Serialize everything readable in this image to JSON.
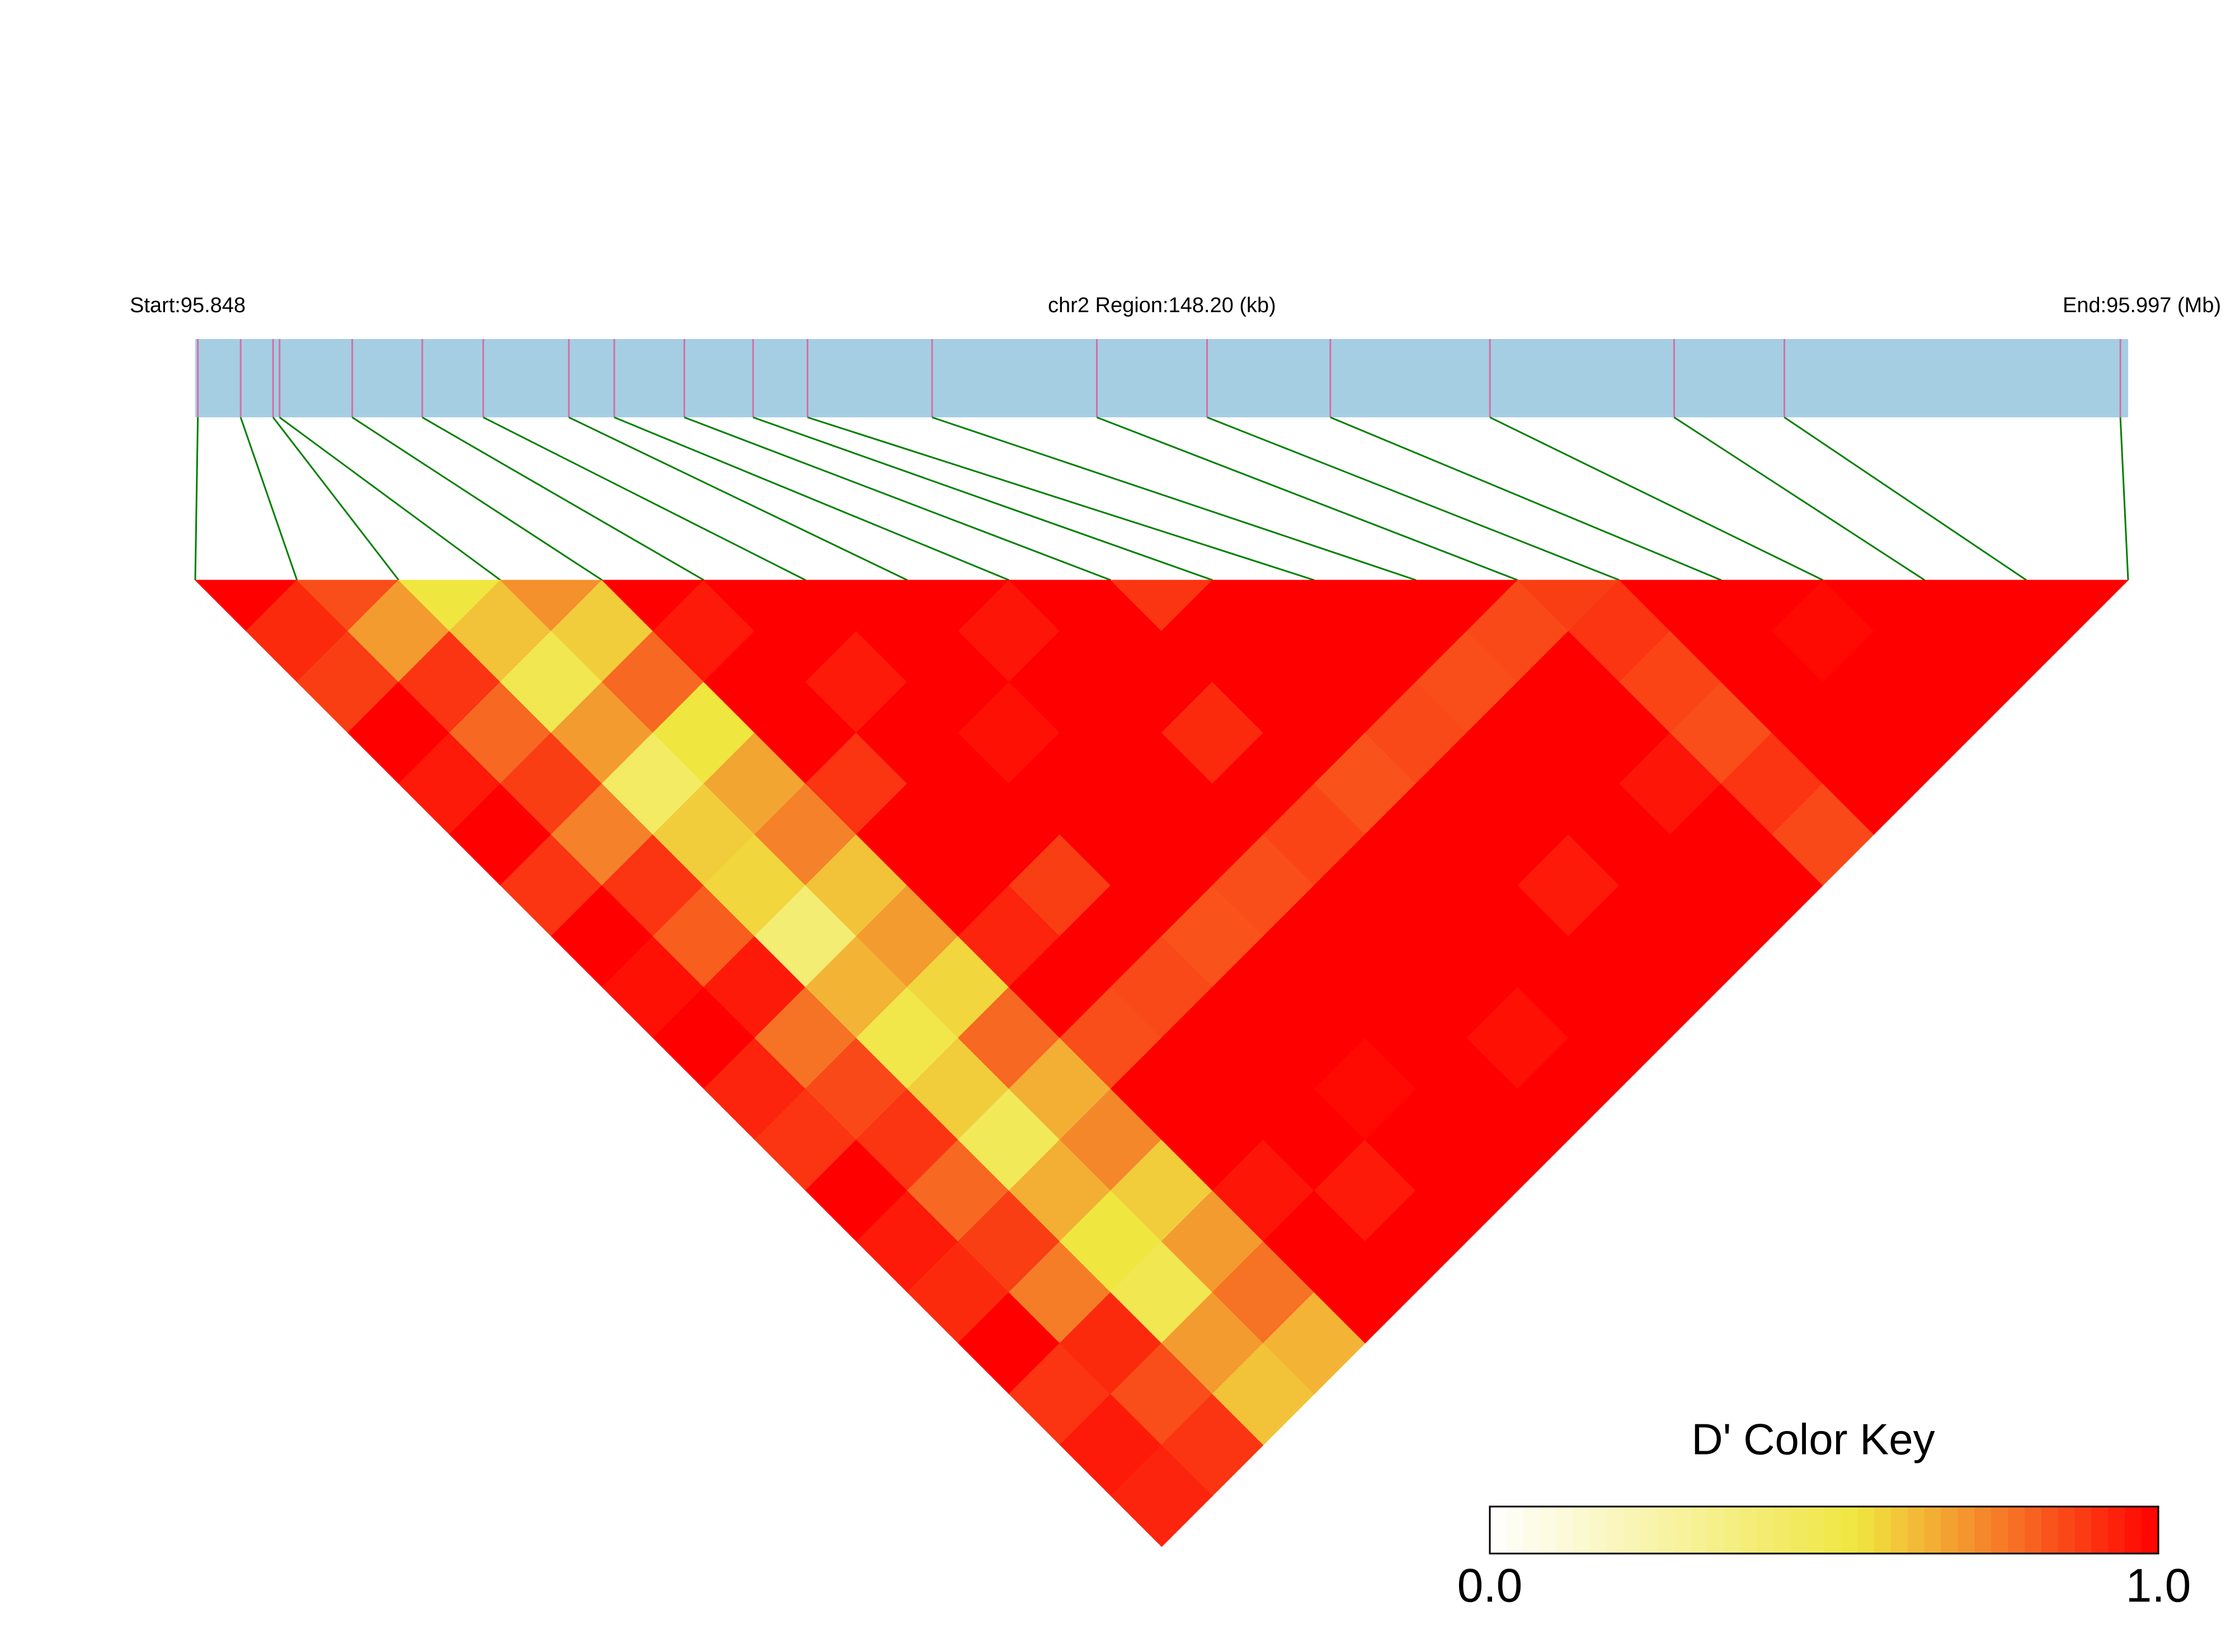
{
  "chart_data": {
    "type": "ld-heatmap",
    "start_label": "Start:95.848",
    "region_label": "chr2 Region:148.20 (kb)",
    "end_label": "End:95.997 (Mb)",
    "xlim": [
      95.848,
      95.997
    ],
    "x": [
      95.8482,
      95.8515,
      95.854,
      95.8545,
      95.8601,
      95.8655,
      95.8702,
      95.8768,
      95.8803,
      95.8857,
      95.891,
      95.8952,
      95.9048,
      95.9175,
      95.926,
      95.9355,
      95.9478,
      95.962,
      95.9705,
      95.9964
    ],
    "dprime": [
      [
        1,
        0.92,
        0.88,
        1,
        0.95,
        1,
        0.9,
        1,
        0.97,
        1,
        0.93,
        0.9,
        1,
        0.95,
        0.92,
        1,
        0.9,
        0.95,
        0.93
      ],
      [
        0.85,
        0.7,
        0.9,
        0.8,
        0.88,
        0.75,
        0.9,
        0.82,
        0.95,
        0.78,
        0.86,
        0.9,
        0.8,
        0.88,
        0.76,
        0.92,
        0.85,
        0.9
      ],
      [
        0.55,
        0.62,
        0.5,
        0.7,
        0.45,
        0.6,
        0.58,
        0.4,
        0.65,
        0.52,
        0.6,
        0.48,
        0.66,
        0.55,
        0.5,
        0.7,
        0.62
      ],
      [
        0.72,
        0.6,
        0.8,
        0.55,
        0.68,
        0.75,
        0.62,
        0.7,
        0.58,
        0.8,
        0.66,
        0.74,
        0.6,
        0.7,
        0.78,
        0.65
      ],
      [
        1,
        0.95,
        1,
        1,
        0.9,
        1,
        1,
        0.93,
        1,
        0.85,
        1,
        1,
        0.96,
        1,
        1
      ],
      [
        1,
        1,
        0.95,
        1,
        1,
        1,
        0.88,
        1,
        0.86,
        1,
        1,
        1,
        0.95,
        1
      ],
      [
        1,
        1,
        1,
        0.97,
        1,
        1,
        1,
        0.84,
        1,
        1,
        0.98,
        1,
        1
      ],
      [
        1,
        0.96,
        1,
        1,
        1,
        1,
        0.85,
        1,
        1,
        1,
        1,
        1
      ],
      [
        1,
        1,
        1,
        0.92,
        1,
        0.87,
        1,
        1,
        1,
        0.97,
        1
      ],
      [
        0.9,
        1,
        1,
        1,
        0.84,
        1,
        1,
        1,
        1,
        1
      ],
      [
        1,
        1,
        1,
        0.86,
        1,
        1,
        0.95,
        1,
        1
      ],
      [
        1,
        1,
        0.85,
        1,
        1,
        1,
        1,
        1
      ],
      [
        1,
        0.86,
        1,
        1,
        0.96,
        1,
        1
      ],
      [
        0.88,
        0.9,
        0.87,
        0.85,
        0.9,
        0.86
      ],
      [
        1,
        1,
        1,
        1,
        1
      ],
      [
        1,
        0.98,
        1,
        1
      ],
      [
        1,
        1,
        1
      ],
      [
        1,
        1
      ],
      [
        1
      ]
    ],
    "bar_color": "#a6cee3",
    "snp_tick_color": "#d36fa5",
    "link_color": "#008000",
    "color_key": {
      "title": "D' Color Key",
      "ticks": [
        {
          "value": 0,
          "label": "0.0"
        },
        {
          "value": 1,
          "label": "1.0"
        }
      ],
      "stops": [
        [
          0,
          "#ffffff"
        ],
        [
          0.55,
          "#f0e640"
        ],
        [
          0.75,
          "#f5822a"
        ],
        [
          1,
          "#ff0000"
        ]
      ]
    }
  }
}
